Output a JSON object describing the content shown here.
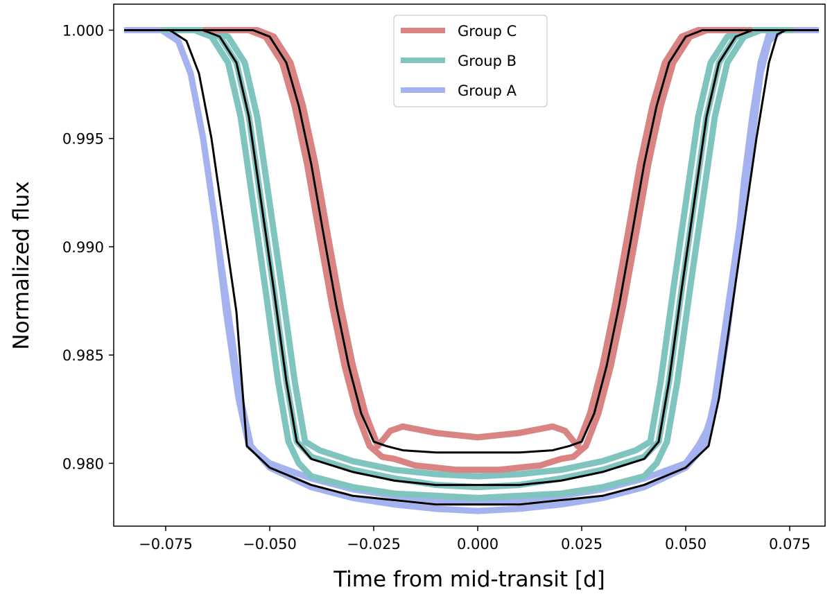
{
  "chart_data": {
    "type": "line",
    "title": "",
    "xlabel": "Time from mid-transit [d]",
    "ylabel": "Normalized flux",
    "xlim": [
      -0.0875,
      0.0835
    ],
    "ylim": [
      0.9771,
      1.0012
    ],
    "x_ticks": [
      -0.075,
      -0.05,
      -0.025,
      0.0,
      0.025,
      0.05,
      0.075
    ],
    "x_tick_labels": [
      "−0.075",
      "−0.050",
      "−0.025",
      "0.000",
      "0.025",
      "0.050",
      "0.075"
    ],
    "y_ticks": [
      0.98,
      0.985,
      0.99,
      0.995,
      1.0
    ],
    "y_tick_labels": [
      "0.980",
      "0.985",
      "0.990",
      "0.995",
      "1.000"
    ],
    "grid": false,
    "legend_position": "top-center",
    "legend": [
      {
        "label": "Group C",
        "color": "#d98383"
      },
      {
        "label": "Group B",
        "color": "#7fc4be"
      },
      {
        "label": "Group A",
        "color": "#a4b3ef"
      }
    ],
    "series": [
      {
        "name": "Group A",
        "color": "#a4b3ef",
        "curves": [
          {
            "x": [
              -0.085,
              -0.076,
              -0.072,
              -0.069,
              -0.066,
              -0.063,
              -0.06,
              -0.057,
              -0.0545,
              -0.05,
              -0.04,
              -0.03,
              -0.02,
              -0.01,
              0.0,
              0.01,
              0.02,
              0.03,
              0.04,
              0.05,
              0.0545,
              0.057,
              0.06,
              0.063,
              0.066,
              0.068,
              0.07,
              0.073,
              0.076,
              0.082
            ],
            "y": [
              1.0,
              1.0,
              0.9995,
              0.998,
              0.995,
              0.991,
              0.987,
              0.983,
              0.9808,
              0.9798,
              0.9789,
              0.9784,
              0.9781,
              0.9779,
              0.9778,
              0.9779,
              0.9781,
              0.9784,
              0.9789,
              0.9798,
              0.9808,
              0.983,
              0.987,
              0.991,
              0.995,
              0.998,
              0.9995,
              1.0,
              1.0,
              1.0
            ]
          },
          {
            "x": [
              -0.085,
              -0.08,
              -0.075,
              -0.072,
              -0.069,
              -0.066,
              -0.063,
              -0.0605,
              -0.0575,
              -0.055,
              -0.05,
              -0.04,
              -0.03,
              -0.02,
              -0.01,
              0.0,
              0.01,
              0.02,
              0.03,
              0.04,
              0.05,
              0.053,
              0.055,
              0.0575,
              0.06,
              0.0625,
              0.064,
              0.066,
              0.068,
              0.07,
              0.072,
              0.076,
              0.082
            ],
            "y": [
              1.0,
              1.0,
              1.0,
              0.9995,
              0.998,
              0.995,
              0.991,
              0.987,
              0.983,
              0.9808,
              0.98,
              0.9793,
              0.9788,
              0.9785,
              0.9783,
              0.9782,
              0.9783,
              0.9785,
              0.9788,
              0.9793,
              0.98,
              0.9808,
              0.9815,
              0.983,
              0.986,
              0.99,
              0.993,
              0.996,
              0.9985,
              0.9998,
              1.0,
              1.0,
              1.0
            ]
          }
        ]
      },
      {
        "name": "Group B",
        "color": "#7fc4be",
        "curves": [
          {
            "x": [
              -0.076,
              -0.066,
              -0.062,
              -0.058,
              -0.055,
              -0.052,
              -0.049,
              -0.046,
              -0.0435,
              -0.04,
              -0.03,
              -0.02,
              -0.01,
              0.0,
              0.01,
              0.02,
              0.03,
              0.04,
              0.0435,
              0.046,
              0.049,
              0.052,
              0.055,
              0.058,
              0.062,
              0.066,
              0.076
            ],
            "y": [
              1.0,
              1.0,
              0.9997,
              0.9985,
              0.996,
              0.992,
              0.988,
              0.9838,
              0.981,
              0.9803,
              0.9797,
              0.9793,
              0.979,
              0.9789,
              0.979,
              0.9793,
              0.9797,
              0.9803,
              0.981,
              0.9838,
              0.988,
              0.992,
              0.996,
              0.9985,
              0.9997,
              1.0,
              1.0
            ]
          },
          {
            "x": [
              -0.076,
              -0.068,
              -0.064,
              -0.06,
              -0.057,
              -0.054,
              -0.051,
              -0.048,
              -0.0455,
              -0.043,
              -0.04,
              -0.03,
              -0.02,
              -0.01,
              0.0,
              0.01,
              0.02,
              0.03,
              0.04,
              0.043,
              0.0455,
              0.048,
              0.051,
              0.054,
              0.057,
              0.06,
              0.064,
              0.068,
              0.076
            ],
            "y": [
              1.0,
              1.0,
              0.9997,
              0.9985,
              0.996,
              0.992,
              0.988,
              0.9838,
              0.981,
              0.98,
              0.9794,
              0.9789,
              0.9786,
              0.9785,
              0.9784,
              0.9785,
              0.9786,
              0.9789,
              0.9794,
              0.98,
              0.981,
              0.9838,
              0.988,
              0.992,
              0.996,
              0.9985,
              0.9997,
              1.0,
              1.0
            ]
          },
          {
            "x": [
              -0.076,
              -0.064,
              -0.06,
              -0.056,
              -0.053,
              -0.05,
              -0.047,
              -0.044,
              -0.0415,
              -0.038,
              -0.03,
              -0.02,
              -0.01,
              0.0,
              0.01,
              0.02,
              0.03,
              0.038,
              0.0415,
              0.044,
              0.047,
              0.05,
              0.053,
              0.056,
              0.06,
              0.064,
              0.076
            ],
            "y": [
              1.0,
              1.0,
              0.9997,
              0.9985,
              0.996,
              0.992,
              0.988,
              0.9838,
              0.981,
              0.9806,
              0.9801,
              0.9797,
              0.9795,
              0.9794,
              0.9795,
              0.9797,
              0.9801,
              0.9806,
              0.981,
              0.9838,
              0.988,
              0.992,
              0.996,
              0.9985,
              0.9997,
              1.0,
              1.0
            ]
          }
        ]
      },
      {
        "name": "Group C",
        "color": "#d98383",
        "curves": [
          {
            "x": [
              -0.066,
              -0.055,
              -0.051,
              -0.047,
              -0.044,
              -0.041,
              -0.038,
              -0.035,
              -0.032,
              -0.029,
              -0.026,
              -0.023,
              -0.02,
              -0.015,
              -0.01,
              -0.005,
              0.0,
              0.005,
              0.01,
              0.015,
              0.02,
              0.023,
              0.026,
              0.029,
              0.032,
              0.035,
              0.038,
              0.041,
              0.044,
              0.047,
              0.051,
              0.055,
              0.066
            ],
            "y": [
              1.0,
              1.0,
              0.9997,
              0.9985,
              0.9965,
              0.9938,
              0.9905,
              0.9873,
              0.9845,
              0.9823,
              0.9808,
              0.9803,
              0.9802,
              0.9799,
              0.9798,
              0.9797,
              0.9797,
              0.9797,
              0.9798,
              0.9799,
              0.9802,
              0.9803,
              0.9808,
              0.9823,
              0.9845,
              0.9873,
              0.9905,
              0.9938,
              0.9965,
              0.9985,
              0.9997,
              1.0,
              1.0
            ]
          },
          {
            "x": [
              -0.066,
              -0.053,
              -0.049,
              -0.045,
              -0.042,
              -0.039,
              -0.036,
              -0.033,
              -0.03,
              -0.027,
              -0.024,
              -0.021,
              -0.018,
              -0.01,
              0.0,
              0.01,
              0.018,
              0.021,
              0.024,
              0.027,
              0.03,
              0.033,
              0.036,
              0.039,
              0.042,
              0.045,
              0.049,
              0.053,
              0.066
            ],
            "y": [
              1.0,
              1.0,
              0.9997,
              0.9985,
              0.9965,
              0.9938,
              0.9905,
              0.9873,
              0.9845,
              0.9823,
              0.9808,
              0.9815,
              0.9817,
              0.9814,
              0.9812,
              0.9814,
              0.9817,
              0.9815,
              0.9808,
              0.9823,
              0.9845,
              0.9873,
              0.9905,
              0.9938,
              0.9965,
              0.9985,
              0.9997,
              1.0,
              1.0
            ]
          }
        ]
      },
      {
        "name": "",
        "color": "#000000",
        "curves": [
          {
            "x": [
              -0.085,
              -0.074,
              -0.07,
              -0.067,
              -0.064,
              -0.061,
              -0.058,
              -0.0555,
              -0.05,
              -0.04,
              -0.03,
              -0.02,
              -0.01,
              0.0,
              0.01,
              0.02,
              0.03,
              0.04,
              0.05,
              0.0555,
              0.058,
              0.061,
              0.064,
              0.067,
              0.07,
              0.072,
              0.074,
              0.082
            ],
            "y": [
              1.0,
              1.0,
              0.9995,
              0.998,
              0.995,
              0.991,
              0.987,
              0.9808,
              0.9798,
              0.979,
              0.9785,
              0.9783,
              0.9781,
              0.9781,
              0.9781,
              0.9783,
              0.9785,
              0.979,
              0.9798,
              0.9808,
              0.983,
              0.987,
              0.991,
              0.995,
              0.9985,
              0.9998,
              1.0,
              1.0
            ]
          },
          {
            "x": [
              -0.076,
              -0.066,
              -0.062,
              -0.058,
              -0.055,
              -0.052,
              -0.049,
              -0.046,
              -0.0435,
              -0.04,
              -0.03,
              -0.02,
              -0.01,
              0.0,
              0.01,
              0.02,
              0.03,
              0.04,
              0.0435,
              0.046,
              0.049,
              0.052,
              0.055,
              0.058,
              0.062,
              0.066,
              0.076
            ],
            "y": [
              1.0,
              1.0,
              0.9997,
              0.9985,
              0.996,
              0.992,
              0.988,
              0.9838,
              0.981,
              0.9802,
              0.9796,
              0.9792,
              0.979,
              0.979,
              0.979,
              0.9792,
              0.9796,
              0.9802,
              0.981,
              0.9838,
              0.988,
              0.992,
              0.996,
              0.9985,
              0.9997,
              1.0,
              1.0
            ]
          },
          {
            "x": [
              -0.066,
              -0.054,
              -0.05,
              -0.046,
              -0.043,
              -0.04,
              -0.037,
              -0.034,
              -0.031,
              -0.028,
              -0.025,
              -0.022,
              -0.018,
              -0.01,
              0.0,
              0.01,
              0.018,
              0.022,
              0.025,
              0.028,
              0.031,
              0.034,
              0.037,
              0.04,
              0.043,
              0.046,
              0.05,
              0.054,
              0.066
            ],
            "y": [
              1.0,
              1.0,
              0.9997,
              0.9985,
              0.9965,
              0.9938,
              0.9905,
              0.9873,
              0.9845,
              0.9823,
              0.981,
              0.9808,
              0.9806,
              0.9805,
              0.9805,
              0.9805,
              0.9806,
              0.9808,
              0.981,
              0.9823,
              0.9845,
              0.9873,
              0.9905,
              0.9938,
              0.9965,
              0.9985,
              0.9997,
              1.0,
              1.0
            ]
          }
        ]
      }
    ]
  }
}
